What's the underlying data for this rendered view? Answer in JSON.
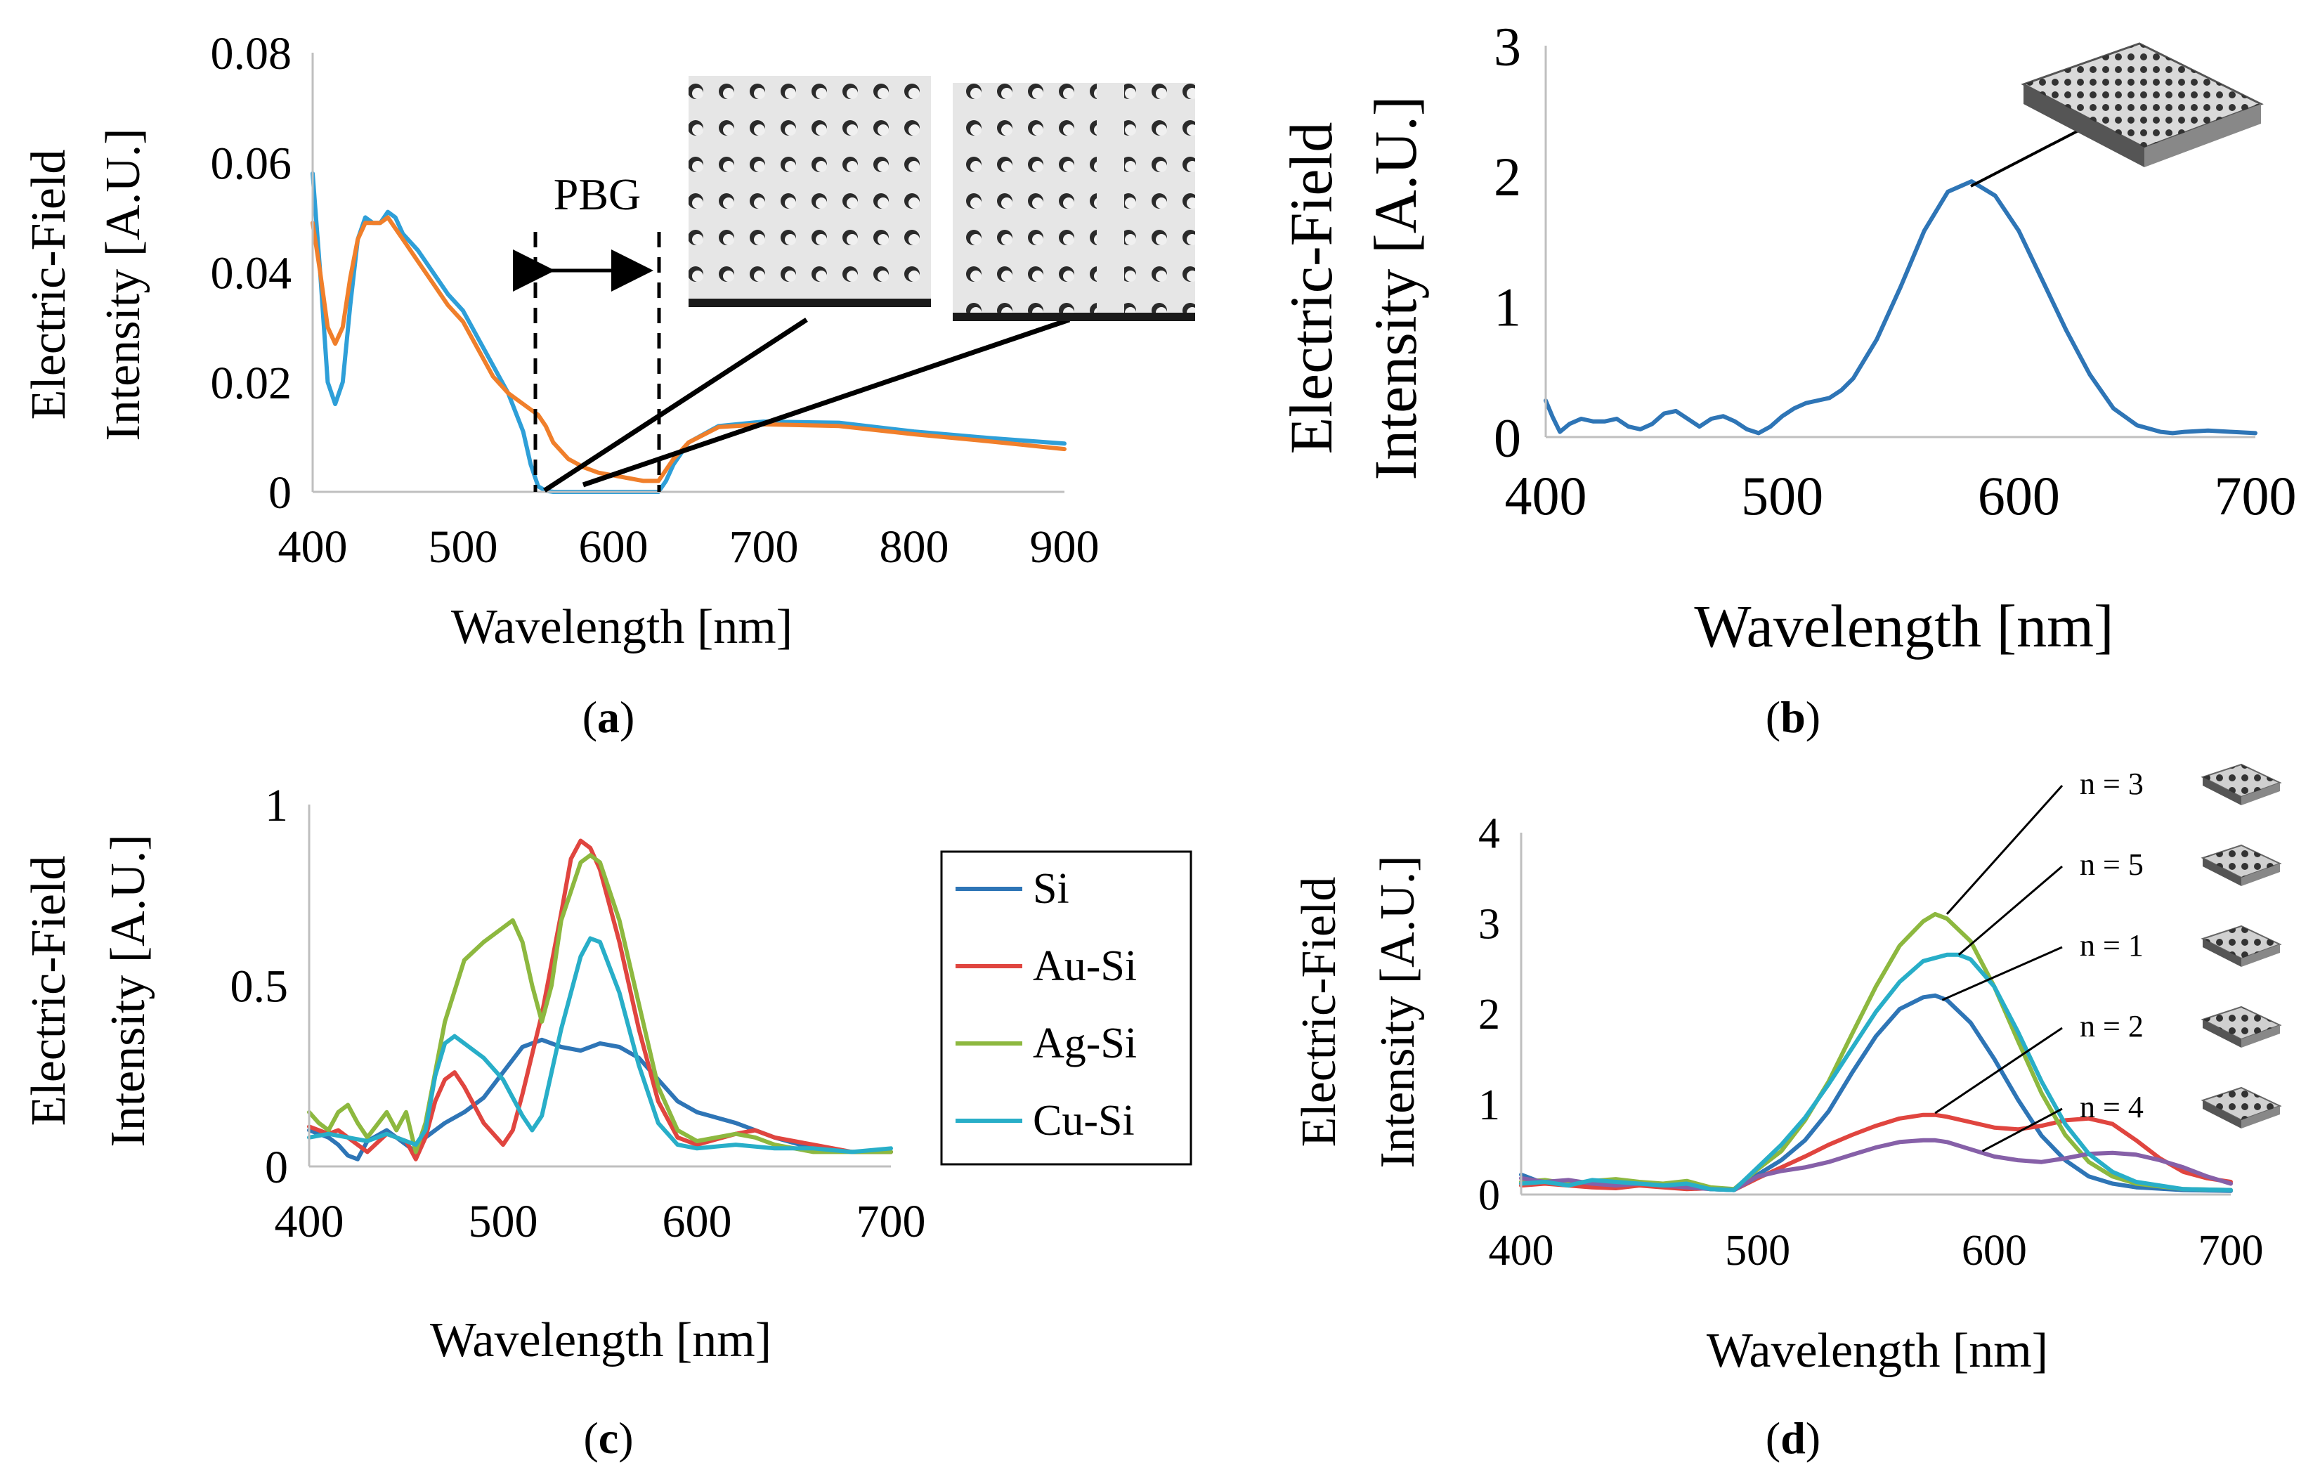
{
  "chart_data": [
    {
      "panel": "a",
      "type": "line",
      "panel_label": "a",
      "xlabel": "Wavelength   [nm]",
      "ylabel": [
        "Electric-Field",
        "Intensity   [A.U.]"
      ],
      "xlim": [
        400,
        900
      ],
      "ylim": [
        0,
        0.08
      ],
      "xticks": [
        "400",
        "500",
        "600",
        "700",
        "800",
        "900"
      ],
      "yticks": [
        "0",
        "0.02",
        "0.04",
        "0.06",
        "0.08"
      ],
      "annotation": "PBG",
      "band_gap": [
        550,
        630
      ],
      "series": [
        {
          "name": "blue",
          "color": "#2e9fd8",
          "x": [
            400,
            405,
            410,
            415,
            420,
            425,
            430,
            435,
            440,
            445,
            450,
            455,
            460,
            470,
            480,
            490,
            500,
            510,
            520,
            530,
            540,
            545,
            550,
            555,
            560,
            570,
            580,
            600,
            620,
            630,
            635,
            640,
            650,
            670,
            700,
            750,
            800,
            850,
            900
          ],
          "y": [
            0.058,
            0.04,
            0.02,
            0.016,
            0.02,
            0.034,
            0.046,
            0.05,
            0.049,
            0.049,
            0.051,
            0.05,
            0.047,
            0.044,
            0.04,
            0.036,
            0.033,
            0.028,
            0.023,
            0.018,
            0.011,
            0.005,
            0.001,
            0.0002,
            0,
            0,
            0,
            0,
            0,
            0,
            0.002,
            0.005,
            0.009,
            0.012,
            0.0128,
            0.0126,
            0.011,
            0.0098,
            0.0088
          ]
        },
        {
          "name": "orange",
          "color": "#f07f2b",
          "x": [
            400,
            405,
            410,
            415,
            420,
            425,
            430,
            435,
            440,
            445,
            450,
            455,
            460,
            470,
            480,
            490,
            500,
            510,
            520,
            530,
            540,
            550,
            555,
            560,
            570,
            580,
            590,
            600,
            610,
            620,
            630,
            640,
            650,
            670,
            700,
            750,
            800,
            850,
            900
          ],
          "y": [
            0.049,
            0.04,
            0.03,
            0.027,
            0.03,
            0.039,
            0.046,
            0.049,
            0.049,
            0.049,
            0.05,
            0.048,
            0.046,
            0.042,
            0.038,
            0.034,
            0.031,
            0.026,
            0.021,
            0.018,
            0.016,
            0.014,
            0.012,
            0.009,
            0.006,
            0.0045,
            0.0035,
            0.003,
            0.0025,
            0.002,
            0.002,
            0.006,
            0.009,
            0.0118,
            0.0123,
            0.012,
            0.0105,
            0.0092,
            0.0078
          ]
        }
      ]
    },
    {
      "panel": "b",
      "type": "line",
      "panel_label": "b",
      "xlabel": "Wavelength   [nm]",
      "ylabel": [
        "Electric-Field",
        "Intensity   [A.U.]"
      ],
      "xlim": [
        400,
        700
      ],
      "ylim": [
        0,
        3
      ],
      "xticks": [
        "400",
        "500",
        "600",
        "700"
      ],
      "yticks": [
        "0",
        "1",
        "2",
        "3"
      ],
      "series": [
        {
          "name": "intensity",
          "color": "#2e75b6",
          "x": [
            400,
            403,
            406,
            410,
            415,
            420,
            425,
            430,
            435,
            440,
            445,
            450,
            455,
            460,
            465,
            470,
            475,
            480,
            485,
            490,
            495,
            500,
            505,
            510,
            515,
            520,
            525,
            530,
            540,
            550,
            560,
            570,
            580,
            590,
            600,
            610,
            620,
            630,
            640,
            650,
            660,
            665,
            670,
            680,
            690,
            700
          ],
          "y": [
            0.28,
            0.15,
            0.04,
            0.1,
            0.14,
            0.12,
            0.12,
            0.14,
            0.08,
            0.06,
            0.1,
            0.18,
            0.2,
            0.14,
            0.08,
            0.14,
            0.16,
            0.12,
            0.06,
            0.03,
            0.08,
            0.16,
            0.22,
            0.26,
            0.28,
            0.3,
            0.36,
            0.45,
            0.75,
            1.15,
            1.58,
            1.88,
            1.96,
            1.85,
            1.58,
            1.2,
            0.82,
            0.48,
            0.22,
            0.09,
            0.04,
            0.03,
            0.04,
            0.05,
            0.04,
            0.03
          ]
        }
      ]
    },
    {
      "panel": "c",
      "type": "line",
      "panel_label": "c",
      "xlabel": "Wavelength [nm]",
      "ylabel": [
        "Electric-Field",
        "Intensity [A.U.]"
      ],
      "xlim": [
        400,
        700
      ],
      "ylim": [
        0,
        1
      ],
      "xticks": [
        "400",
        "500",
        "600",
        "700"
      ],
      "yticks": [
        "0",
        "0.5",
        "1"
      ],
      "legend": [
        "Si",
        "Au-Si",
        "Ag-Si",
        "Cu-Si"
      ],
      "series": [
        {
          "name": "Si",
          "color": "#2e75b6",
          "x": [
            400,
            410,
            415,
            420,
            425,
            430,
            440,
            450,
            455,
            460,
            470,
            480,
            490,
            500,
            510,
            520,
            530,
            540,
            550,
            560,
            570,
            580,
            590,
            600,
            620,
            640,
            660,
            680,
            700
          ],
          "y": [
            0.1,
            0.08,
            0.06,
            0.03,
            0.02,
            0.07,
            0.1,
            0.06,
            0.04,
            0.08,
            0.12,
            0.15,
            0.19,
            0.26,
            0.33,
            0.35,
            0.33,
            0.32,
            0.34,
            0.33,
            0.3,
            0.24,
            0.18,
            0.15,
            0.12,
            0.08,
            0.05,
            0.04,
            0.04
          ]
        },
        {
          "name": "Au-Si",
          "color": "#e0453f",
          "x": [
            400,
            410,
            415,
            420,
            430,
            440,
            450,
            455,
            460,
            465,
            470,
            475,
            480,
            490,
            500,
            505,
            510,
            520,
            530,
            535,
            540,
            545,
            550,
            560,
            570,
            580,
            590,
            600,
            620,
            630,
            640,
            660,
            680,
            700
          ],
          "y": [
            0.11,
            0.09,
            0.1,
            0.08,
            0.04,
            0.09,
            0.07,
            0.02,
            0.08,
            0.18,
            0.24,
            0.26,
            0.22,
            0.12,
            0.06,
            0.1,
            0.2,
            0.42,
            0.7,
            0.85,
            0.9,
            0.88,
            0.82,
            0.62,
            0.38,
            0.18,
            0.08,
            0.06,
            0.09,
            0.1,
            0.08,
            0.06,
            0.04,
            0.04
          ]
        },
        {
          "name": "Ag-Si",
          "color": "#8db83f",
          "x": [
            400,
            405,
            410,
            415,
            420,
            425,
            430,
            440,
            445,
            450,
            455,
            460,
            470,
            480,
            490,
            500,
            505,
            510,
            515,
            520,
            525,
            530,
            540,
            545,
            550,
            560,
            570,
            580,
            590,
            600,
            610,
            620,
            630,
            640,
            660,
            680,
            700
          ],
          "y": [
            0.15,
            0.12,
            0.1,
            0.15,
            0.17,
            0.12,
            0.08,
            0.15,
            0.1,
            0.15,
            0.04,
            0.12,
            0.4,
            0.57,
            0.62,
            0.66,
            0.68,
            0.62,
            0.5,
            0.4,
            0.5,
            0.68,
            0.84,
            0.86,
            0.84,
            0.68,
            0.45,
            0.22,
            0.1,
            0.07,
            0.08,
            0.09,
            0.08,
            0.06,
            0.04,
            0.04,
            0.04
          ]
        },
        {
          "name": "Cu-Si",
          "color": "#28aec8",
          "x": [
            400,
            410,
            420,
            430,
            440,
            450,
            455,
            460,
            465,
            470,
            475,
            480,
            490,
            500,
            510,
            515,
            520,
            530,
            540,
            545,
            550,
            560,
            570,
            580,
            590,
            600,
            620,
            640,
            660,
            680,
            700
          ],
          "y": [
            0.08,
            0.09,
            0.08,
            0.07,
            0.09,
            0.07,
            0.06,
            0.1,
            0.25,
            0.34,
            0.36,
            0.34,
            0.3,
            0.24,
            0.14,
            0.1,
            0.14,
            0.38,
            0.58,
            0.63,
            0.62,
            0.48,
            0.28,
            0.12,
            0.06,
            0.05,
            0.06,
            0.05,
            0.05,
            0.04,
            0.05
          ]
        }
      ]
    },
    {
      "panel": "d",
      "type": "line",
      "panel_label": "d",
      "xlabel": "Wavelength [nm]",
      "ylabel": [
        "Electric-Field",
        "Intensity   [A.U.]"
      ],
      "xlim": [
        400,
        700
      ],
      "ylim": [
        0,
        4
      ],
      "xticks": [
        "400",
        "500",
        "600",
        "700"
      ],
      "yticks": [
        "0",
        "1",
        "2",
        "3",
        "4"
      ],
      "labels": [
        "n = 3",
        "n = 5",
        "n = 1",
        "n = 2",
        "n = 4"
      ],
      "series": [
        {
          "name": "n = 1",
          "color": "#2e75b6",
          "x": [
            400,
            410,
            420,
            430,
            440,
            450,
            460,
            470,
            480,
            490,
            500,
            510,
            520,
            530,
            540,
            550,
            560,
            570,
            575,
            580,
            590,
            600,
            610,
            620,
            630,
            640,
            650,
            660,
            680,
            700
          ],
          "y": [
            0.22,
            0.12,
            0.14,
            0.1,
            0.12,
            0.12,
            0.1,
            0.12,
            0.06,
            0.05,
            0.22,
            0.38,
            0.6,
            0.92,
            1.35,
            1.75,
            2.05,
            2.18,
            2.2,
            2.15,
            1.9,
            1.5,
            1.05,
            0.65,
            0.38,
            0.2,
            0.12,
            0.08,
            0.05,
            0.04
          ]
        },
        {
          "name": "n = 2",
          "color": "#e0453f",
          "x": [
            400,
            410,
            420,
            430,
            440,
            450,
            460,
            470,
            480,
            490,
            500,
            510,
            520,
            530,
            540,
            550,
            560,
            570,
            575,
            580,
            590,
            600,
            610,
            620,
            630,
            640,
            650,
            660,
            670,
            680,
            690,
            700
          ],
          "y": [
            0.1,
            0.12,
            0.1,
            0.08,
            0.07,
            0.1,
            0.08,
            0.06,
            0.07,
            0.05,
            0.18,
            0.3,
            0.42,
            0.55,
            0.66,
            0.76,
            0.84,
            0.88,
            0.88,
            0.86,
            0.8,
            0.74,
            0.72,
            0.76,
            0.82,
            0.84,
            0.78,
            0.6,
            0.4,
            0.25,
            0.18,
            0.14
          ]
        },
        {
          "name": "n = 3",
          "color": "#8db83f",
          "x": [
            400,
            410,
            420,
            430,
            440,
            450,
            460,
            470,
            480,
            490,
            500,
            510,
            520,
            530,
            540,
            550,
            560,
            570,
            575,
            580,
            590,
            600,
            610,
            620,
            630,
            640,
            650,
            660,
            680,
            700
          ],
          "y": [
            0.14,
            0.16,
            0.12,
            0.15,
            0.17,
            0.14,
            0.12,
            0.15,
            0.08,
            0.06,
            0.28,
            0.48,
            0.82,
            1.25,
            1.78,
            2.3,
            2.75,
            3.02,
            3.1,
            3.05,
            2.8,
            2.3,
            1.7,
            1.12,
            0.66,
            0.36,
            0.2,
            0.12,
            0.06,
            0.05
          ]
        },
        {
          "name": "n = 4",
          "color": "#8660a8",
          "x": [
            400,
            410,
            420,
            430,
            440,
            450,
            460,
            470,
            480,
            490,
            500,
            510,
            520,
            530,
            540,
            550,
            560,
            570,
            575,
            580,
            590,
            600,
            610,
            620,
            630,
            640,
            650,
            660,
            670,
            680,
            690,
            700
          ],
          "y": [
            0.18,
            0.14,
            0.16,
            0.12,
            0.1,
            0.12,
            0.1,
            0.08,
            0.06,
            0.05,
            0.2,
            0.26,
            0.3,
            0.36,
            0.44,
            0.52,
            0.58,
            0.6,
            0.6,
            0.58,
            0.5,
            0.42,
            0.38,
            0.36,
            0.4,
            0.45,
            0.46,
            0.44,
            0.38,
            0.3,
            0.2,
            0.12
          ]
        },
        {
          "name": "n = 5",
          "color": "#28aec8",
          "x": [
            400,
            410,
            420,
            430,
            440,
            450,
            460,
            470,
            480,
            490,
            500,
            510,
            520,
            530,
            540,
            550,
            560,
            570,
            580,
            585,
            590,
            600,
            610,
            620,
            630,
            640,
            650,
            660,
            680,
            700
          ],
          "y": [
            0.12,
            0.14,
            0.1,
            0.16,
            0.14,
            0.12,
            0.1,
            0.12,
            0.06,
            0.05,
            0.3,
            0.55,
            0.85,
            1.22,
            1.62,
            2.02,
            2.35,
            2.58,
            2.65,
            2.65,
            2.6,
            2.3,
            1.8,
            1.25,
            0.78,
            0.45,
            0.25,
            0.14,
            0.06,
            0.05
          ]
        }
      ]
    }
  ]
}
